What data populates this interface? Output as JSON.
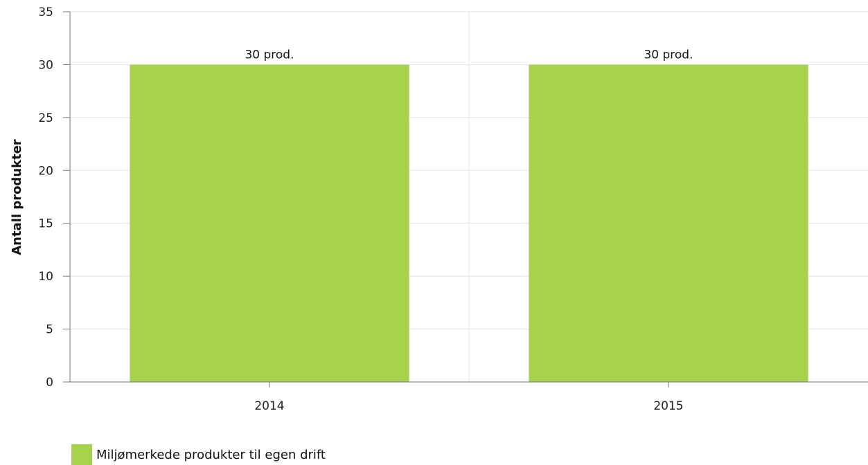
{
  "chart_data": {
    "type": "bar",
    "categories": [
      "2014",
      "2015"
    ],
    "series": [
      {
        "name": "Miljømerkede produkter til egen drift",
        "values": [
          30,
          30
        ],
        "color": "#a6d24e",
        "data_labels": [
          "30 prod.",
          "30 prod."
        ]
      }
    ],
    "xlabel": "",
    "ylabel": "Antall produkter",
    "ylim": [
      0,
      35
    ],
    "yticks": [
      0,
      5,
      10,
      15,
      20,
      25,
      30,
      35
    ],
    "grid": true,
    "legend_position": "bottom-left"
  }
}
